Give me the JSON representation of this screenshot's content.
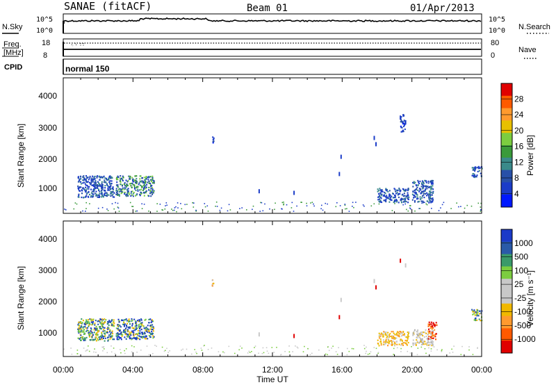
{
  "header": {
    "station": "SANAE (fitACF)",
    "beam": "Beam 01",
    "date": "01/Apr/2013"
  },
  "nsky": {
    "label": "N.Sky",
    "ticks": [
      "10^5",
      "10^0"
    ],
    "right_ticks": [
      "10^5",
      "10^0"
    ],
    "right_label": "N.Search"
  },
  "freq": {
    "label1": "Freq.",
    "label2": "[MHz]",
    "ticks": [
      "18",
      "8"
    ],
    "right_ticks": [
      "80",
      "0"
    ],
    "right_label": "Nave"
  },
  "cpid": {
    "label": "CPID",
    "mode": "normal 150"
  },
  "x_axis": {
    "label": "Time UT",
    "ticks": [
      "00:00",
      "04:00",
      "08:00",
      "12:00",
      "16:00",
      "20:00",
      "00:00"
    ]
  },
  "power_panel": {
    "ylabel": "Slant Range [km]",
    "yticks": [
      "4000",
      "3000",
      "2000",
      "1000"
    ],
    "cbar_label": "Power [dB]",
    "cbar_ticks": [
      "28",
      "24",
      "20",
      "16",
      "12",
      "8",
      "4"
    ],
    "cbar_colors": [
      "#e00000",
      "#ff5a00",
      "#ff9a2e",
      "#e8c000",
      "#7ccd40",
      "#3a9a3a",
      "#3a8a8a",
      "#2850a8",
      "#1b3cc8",
      "#0018ff"
    ]
  },
  "velocity_panel": {
    "ylabel": "Slant Range [km]",
    "yticks": [
      "4000",
      "3000",
      "2000",
      "1000"
    ],
    "cbar_label": "Velocity [m s⁻¹]",
    "cbar_ticks": [
      "1000",
      "500",
      "100",
      "25",
      "-25",
      "-100",
      "-500",
      "-1000"
    ],
    "cbar_colors": [
      "#1b3ac8",
      "#2a5aa8",
      "#3a9a6a",
      "#7ccd40",
      "#c8c8c8",
      "#c8c8c8",
      "#f0b800",
      "#ff9a2e",
      "#ff5a00",
      "#e00000"
    ]
  },
  "chart_data": [
    {
      "type": "heatmap",
      "title": "Power",
      "xlabel": "Time UT",
      "ylabel": "Slant Range [km]",
      "xlim": [
        0,
        24
      ],
      "ylim": [
        180,
        4500
      ],
      "colorbar": {
        "label": "Power [dB]",
        "range": [
          0,
          32
        ]
      },
      "clusters": [
        {
          "t0": 0.8,
          "t1": 2.9,
          "r0": 700,
          "r1": 1400,
          "value": 8
        },
        {
          "t0": 3.0,
          "t1": 5.2,
          "r0": 750,
          "r1": 1400,
          "value": 10
        },
        {
          "t0": 18.0,
          "t1": 19.8,
          "r0": 550,
          "r1": 1000,
          "value": 6
        },
        {
          "t0": 20.0,
          "t1": 21.2,
          "r0": 550,
          "r1": 1250,
          "value": 8
        },
        {
          "t0": 8.5,
          "t1": 8.6,
          "r0": 2450,
          "r1": 2650,
          "value": 4
        },
        {
          "t0": 19.3,
          "t1": 19.6,
          "r0": 2800,
          "r1": 3350,
          "value": 4
        },
        {
          "t0": 23.4,
          "t1": 24.0,
          "r0": 1350,
          "r1": 1700,
          "value": 6
        }
      ]
    },
    {
      "type": "heatmap",
      "title": "Velocity",
      "xlabel": "Time UT",
      "ylabel": "Slant Range [km]",
      "xlim": [
        0,
        24
      ],
      "ylim": [
        180,
        4500
      ],
      "colorbar": {
        "label": "Velocity [m s⁻¹]",
        "range": [
          -1000,
          1000
        ]
      },
      "clusters": [
        {
          "t0": 0.8,
          "t1": 2.9,
          "r0": 700,
          "r1": 1400,
          "value": 100
        },
        {
          "t0": 3.0,
          "t1": 5.2,
          "r0": 750,
          "r1": 1400,
          "value": 500
        },
        {
          "t0": 18.0,
          "t1": 19.8,
          "r0": 550,
          "r1": 1000,
          "value": -100
        },
        {
          "t0": 20.0,
          "t1": 21.2,
          "r0": 550,
          "r1": 1050,
          "value": 0
        },
        {
          "t0": 20.9,
          "t1": 21.4,
          "r0": 750,
          "r1": 1300,
          "value": -500
        },
        {
          "t0": 8.5,
          "t1": 8.6,
          "r0": 2450,
          "r1": 2650,
          "value": -100
        },
        {
          "t0": 23.4,
          "t1": 24.0,
          "r0": 1350,
          "r1": 1700,
          "value": 100
        }
      ]
    }
  ]
}
